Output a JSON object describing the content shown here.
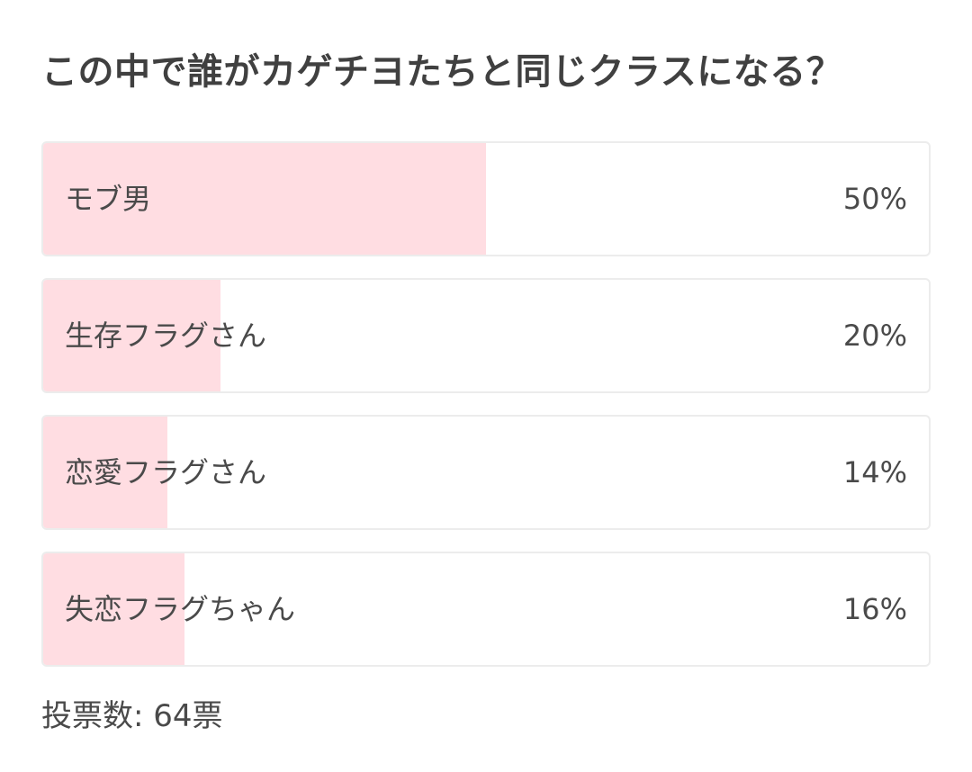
{
  "poll": {
    "title": "この中で誰がカゲチヨたちと同じクラスになる？",
    "fill_color": "#ffdde2",
    "options": [
      {
        "label": "モブ男",
        "percent_text": "50%",
        "percent": 50
      },
      {
        "label": "生存フラグさん",
        "percent_text": "20%",
        "percent": 20
      },
      {
        "label": "恋愛フラグさん",
        "percent_text": "14%",
        "percent": 14
      },
      {
        "label": "失恋フラグちゃん",
        "percent_text": "16%",
        "percent": 16
      }
    ],
    "vote_total": "投票数: 64票"
  }
}
